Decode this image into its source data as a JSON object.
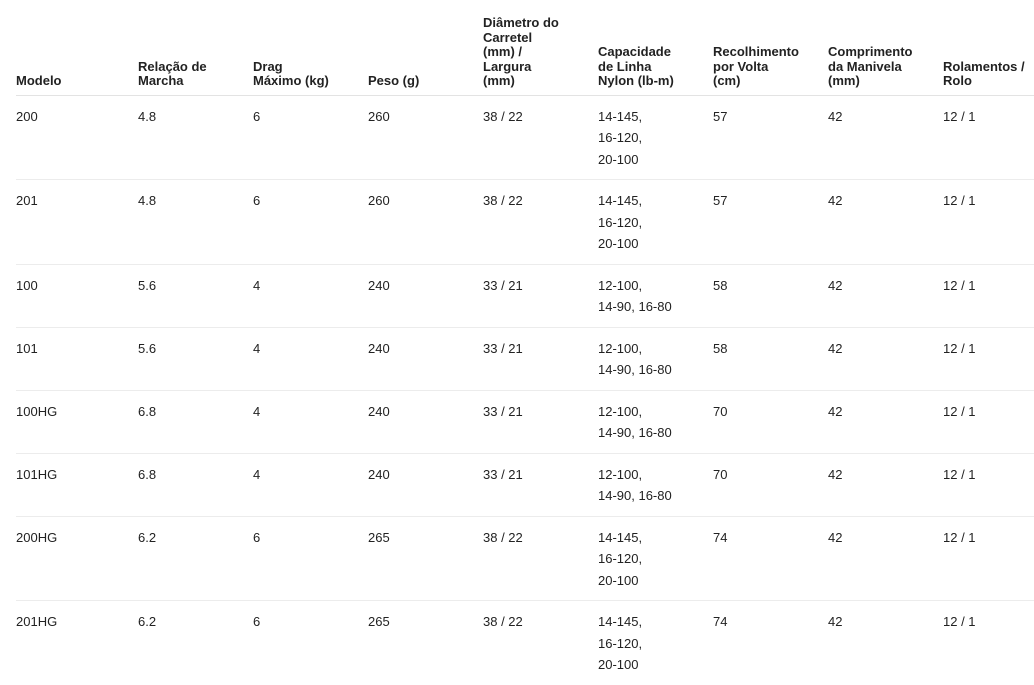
{
  "table": {
    "header": [
      [
        "Modelo"
      ],
      [
        "Relação de",
        "Marcha"
      ],
      [
        "Drag",
        "Máximo (kg)"
      ],
      [
        "Peso (g)"
      ],
      [
        "Diâmetro do",
        "Carretel",
        "(mm) /",
        "Largura",
        "(mm)"
      ],
      [
        "Capacidade",
        "de Linha",
        "Nylon (lb-m)"
      ],
      [
        "Recolhimento",
        "por Volta",
        "(cm)"
      ],
      [
        "Comprimento",
        "da Manivela",
        "(mm)"
      ],
      [
        "Rolamentos /",
        "Rolo"
      ]
    ],
    "rows": [
      [
        "200",
        "4.8",
        "6",
        "260",
        "38 / 22",
        [
          "14-145,",
          "16-120,",
          "20-100"
        ],
        "57",
        "42",
        "12 / 1"
      ],
      [
        "201",
        "4.8",
        "6",
        "260",
        "38 / 22",
        [
          "14-145,",
          "16-120,",
          "20-100"
        ],
        "57",
        "42",
        "12 / 1"
      ],
      [
        "100",
        "5.6",
        "4",
        "240",
        "33 / 21",
        [
          "12-100,",
          "14-90, 16-80"
        ],
        "58",
        "42",
        "12 / 1"
      ],
      [
        "101",
        "5.6",
        "4",
        "240",
        "33 / 21",
        [
          "12-100,",
          "14-90, 16-80"
        ],
        "58",
        "42",
        "12 / 1"
      ],
      [
        "100HG",
        "6.8",
        "4",
        "240",
        "33 / 21",
        [
          "12-100,",
          "14-90, 16-80"
        ],
        "70",
        "42",
        "12 / 1"
      ],
      [
        "101HG",
        "6.8",
        "4",
        "240",
        "33 / 21",
        [
          "12-100,",
          "14-90, 16-80"
        ],
        "70",
        "42",
        "12 / 1"
      ],
      [
        "200HG",
        "6.2",
        "6",
        "265",
        "38 / 22",
        [
          "14-145,",
          "16-120,",
          "20-100"
        ],
        "74",
        "42",
        "12 / 1"
      ],
      [
        "201HG",
        "6.2",
        "6",
        "265",
        "38 / 22",
        [
          "14-145,",
          "16-120,",
          "20-100"
        ],
        "74",
        "42",
        "12 / 1"
      ]
    ]
  }
}
